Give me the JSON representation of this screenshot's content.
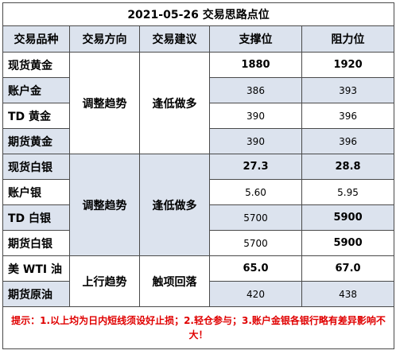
{
  "title": "2021-05-26 交易思路点位",
  "headers": [
    "交易品种",
    "交易方向",
    "交易建议",
    "支撑位",
    "阻力位"
  ],
  "groups": [
    {
      "direction": "调整趋势",
      "suggestion": "逢低做多",
      "rows": [
        {
          "name": "现货黄金",
          "support": "1880",
          "resistance": "1920",
          "support_bold": true,
          "resistance_bold": true
        },
        {
          "name": "账户金",
          "support": "386",
          "resistance": "393",
          "support_bold": false,
          "resistance_bold": false
        },
        {
          "name": "TD 黄金",
          "support": "390",
          "resistance": "396",
          "support_bold": false,
          "resistance_bold": false
        },
        {
          "name": "期货黄金",
          "support": "390",
          "resistance": "396",
          "support_bold": false,
          "resistance_bold": false
        }
      ]
    },
    {
      "direction": "调整趋势",
      "suggestion": "逢低做多",
      "rows": [
        {
          "name": "现货白银",
          "support": "27.3",
          "resistance": "28.8",
          "support_bold": true,
          "resistance_bold": true
        },
        {
          "name": "账户银",
          "support": "5.60",
          "resistance": "5.95",
          "support_bold": false,
          "resistance_bold": false
        },
        {
          "name": "TD 白银",
          "support": "5700",
          "resistance": "5900",
          "support_bold": false,
          "resistance_bold": true
        },
        {
          "name": "期货白银",
          "support": "5700",
          "resistance": "5900",
          "support_bold": false,
          "resistance_bold": true
        }
      ]
    },
    {
      "direction": "上行趋势",
      "suggestion": "触项回落",
      "rows": [
        {
          "name": "美 WTI 油",
          "support": "65.0",
          "resistance": "67.0",
          "support_bold": true,
          "resistance_bold": true
        },
        {
          "name": "期货原油",
          "support": "420",
          "resistance": "438",
          "support_bold": false,
          "resistance_bold": false
        }
      ]
    }
  ],
  "tip": "提示：1.以上均为日内短线须设好止损；2.轻仓参与；3.账户金银各银行略有差异影响不大！"
}
